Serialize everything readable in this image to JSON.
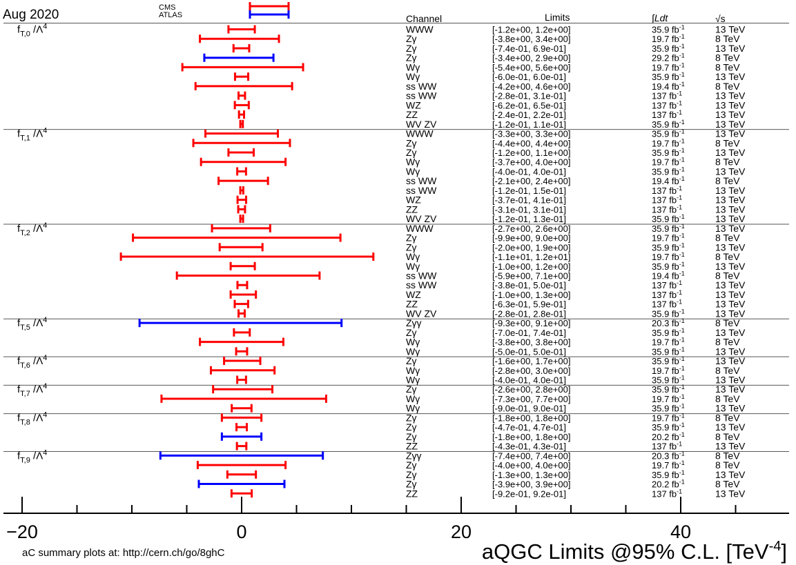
{
  "header": {
    "date": "Aug 2020",
    "legend": [
      {
        "label": "CMS",
        "color": "#ff0000"
      },
      {
        "label": "ATLAS",
        "color": "#0000ff"
      }
    ],
    "columns": {
      "channel": "Channel",
      "limits": "Limits",
      "lumi": "∫Ldt",
      "energy": "√s"
    }
  },
  "footer": {
    "link_text": "aC summary plots at: http://cern.ch/go/8ghC",
    "xlabel": "aQGC Limits @95% C.L. [TeV",
    "xlabel_sup": "-4",
    "xlabel_end": "]"
  },
  "chart_data": {
    "type": "errorbar",
    "xlim": [
      -20,
      50
    ],
    "xticks": [
      -20,
      0,
      20,
      40
    ],
    "xtick_labels": [
      "−20",
      "0",
      "20",
      "40"
    ],
    "colors": {
      "CMS": "#ff0000",
      "ATLAS": "#0000ff"
    },
    "groups": [
      {
        "label": "f",
        "sub": "T,0",
        "suffix": " /Λ",
        "sup": "4",
        "rows": [
          {
            "channel": "WWW",
            "limits": "[-1.2e+00, 1.2e+00]",
            "lumi": "35.9",
            "energy": "13 TeV",
            "exp": "CMS",
            "lo": -1.2,
            "hi": 1.2
          },
          {
            "channel": "Zγ",
            "limits": "[-3.8e+00, 3.4e+00]",
            "lumi": "19.7",
            "energy": "8 TeV",
            "exp": "CMS",
            "lo": -3.8,
            "hi": 3.4
          },
          {
            "channel": "Zγ",
            "limits": "[-7.4e-01, 6.9e-01]",
            "lumi": "35.9",
            "energy": "13 TeV",
            "exp": "CMS",
            "lo": -0.74,
            "hi": 0.69
          },
          {
            "channel": "Zγ",
            "limits": "[-3.4e+00, 2.9e+00]",
            "lumi": "29.2",
            "energy": "8 TeV",
            "exp": "ATLAS",
            "lo": -3.4,
            "hi": 2.9
          },
          {
            "channel": "Wγ",
            "limits": "[-5.4e+00, 5.6e+00]",
            "lumi": "19.7",
            "energy": "8 TeV",
            "exp": "CMS",
            "lo": -5.4,
            "hi": 5.6
          },
          {
            "channel": "Wγ",
            "limits": "[-6.0e-01, 6.0e-01]",
            "lumi": "35.9",
            "energy": "13 TeV",
            "exp": "CMS",
            "lo": -0.6,
            "hi": 0.6
          },
          {
            "channel": "ss WW",
            "limits": "[-4.2e+00, 4.6e+00]",
            "lumi": "19.4",
            "energy": "8 TeV",
            "exp": "CMS",
            "lo": -4.2,
            "hi": 4.6
          },
          {
            "channel": "ss WW",
            "limits": "[-2.8e-01, 3.1e-01]",
            "lumi": "137",
            "energy": "13 TeV",
            "exp": "CMS",
            "lo": -0.28,
            "hi": 0.31
          },
          {
            "channel": "WZ",
            "limits": "[-6.2e-01, 6.5e-01]",
            "lumi": "137",
            "energy": "13 TeV",
            "exp": "CMS",
            "lo": -0.62,
            "hi": 0.65
          },
          {
            "channel": "ZZ",
            "limits": "[-2.4e-01, 2.2e-01]",
            "lumi": "137",
            "energy": "13 TeV",
            "exp": "CMS",
            "lo": -0.24,
            "hi": 0.22
          },
          {
            "channel": "WV ZV",
            "limits": "[-1.2e-01, 1.1e-01]",
            "lumi": "35.9",
            "energy": "13 TeV",
            "exp": "CMS",
            "lo": -0.12,
            "hi": 0.11
          }
        ]
      },
      {
        "label": "f",
        "sub": "T,1",
        "suffix": " /Λ",
        "sup": "4",
        "rows": [
          {
            "channel": "WWW",
            "limits": "[-3.3e+00, 3.3e+00]",
            "lumi": "35.9",
            "energy": "13 TeV",
            "exp": "CMS",
            "lo": -3.3,
            "hi": 3.3
          },
          {
            "channel": "Zγ",
            "limits": "[-4.4e+00, 4.4e+00]",
            "lumi": "19.7",
            "energy": "8 TeV",
            "exp": "CMS",
            "lo": -4.4,
            "hi": 4.4
          },
          {
            "channel": "Zγ",
            "limits": "[-1.2e+00, 1.1e+00]",
            "lumi": "35.9",
            "energy": "13 TeV",
            "exp": "CMS",
            "lo": -1.2,
            "hi": 1.1
          },
          {
            "channel": "Wγ",
            "limits": "[-3.7e+00, 4.0e+00]",
            "lumi": "19.7",
            "energy": "8 TeV",
            "exp": "CMS",
            "lo": -3.7,
            "hi": 4.0
          },
          {
            "channel": "Wγ",
            "limits": "[-4.0e-01, 4.0e-01]",
            "lumi": "35.9",
            "energy": "13 TeV",
            "exp": "CMS",
            "lo": -0.4,
            "hi": 0.4
          },
          {
            "channel": "ss WW",
            "limits": "[-2.1e+00, 2.4e+00]",
            "lumi": "19.4",
            "energy": "8 TeV",
            "exp": "CMS",
            "lo": -2.1,
            "hi": 2.4
          },
          {
            "channel": "ss WW",
            "limits": "[-1.2e-01, 1.5e-01]",
            "lumi": "137",
            "energy": "13 TeV",
            "exp": "CMS",
            "lo": -0.12,
            "hi": 0.15
          },
          {
            "channel": "WZ",
            "limits": "[-3.7e-01, 4.1e-01]",
            "lumi": "137",
            "energy": "13 TeV",
            "exp": "CMS",
            "lo": -0.37,
            "hi": 0.41
          },
          {
            "channel": "ZZ",
            "limits": "[-3.1e-01, 3.1e-01]",
            "lumi": "137",
            "energy": "13 TeV",
            "exp": "CMS",
            "lo": -0.31,
            "hi": 0.31
          },
          {
            "channel": "WV ZV",
            "limits": "[-1.2e-01, 1.3e-01]",
            "lumi": "35.9",
            "energy": "13 TeV",
            "exp": "CMS",
            "lo": -0.12,
            "hi": 0.13
          }
        ]
      },
      {
        "label": "f",
        "sub": "T,2",
        "suffix": " /Λ",
        "sup": "4",
        "rows": [
          {
            "channel": "WWW",
            "limits": "[-2.7e+00, 2.6e+00]",
            "lumi": "35.9",
            "energy": "13 TeV",
            "exp": "CMS",
            "lo": -2.7,
            "hi": 2.6
          },
          {
            "channel": "Zγ",
            "limits": "[-9.9e+00, 9.0e+00]",
            "lumi": "19.7",
            "energy": "8 TeV",
            "exp": "CMS",
            "lo": -9.9,
            "hi": 9.0
          },
          {
            "channel": "Zγ",
            "limits": "[-2.0e+00, 1.9e+00]",
            "lumi": "35.9",
            "energy": "13 TeV",
            "exp": "CMS",
            "lo": -2.0,
            "hi": 1.9
          },
          {
            "channel": "Wγ",
            "limits": "[-1.1e+01, 1.2e+01]",
            "lumi": "19.7",
            "energy": "8 TeV",
            "exp": "CMS",
            "lo": -11,
            "hi": 12
          },
          {
            "channel": "Wγ",
            "limits": "[-1.0e+00, 1.2e+00]",
            "lumi": "35.9",
            "energy": "13 TeV",
            "exp": "CMS",
            "lo": -1.0,
            "hi": 1.2
          },
          {
            "channel": "ss WW",
            "limits": "[-5.9e+00, 7.1e+00]",
            "lumi": "19.4",
            "energy": "8 TeV",
            "exp": "CMS",
            "lo": -5.9,
            "hi": 7.1
          },
          {
            "channel": "ss WW",
            "limits": "[-3.8e-01, 5.0e-01]",
            "lumi": "137",
            "energy": "13 TeV",
            "exp": "CMS",
            "lo": -0.38,
            "hi": 0.5
          },
          {
            "channel": "WZ",
            "limits": "[-1.0e+00, 1.3e+00]",
            "lumi": "137",
            "energy": "13 TeV",
            "exp": "CMS",
            "lo": -1.0,
            "hi": 1.3
          },
          {
            "channel": "ZZ",
            "limits": "[-6.3e-01, 5.9e-01]",
            "lumi": "137",
            "energy": "13 TeV",
            "exp": "CMS",
            "lo": -0.63,
            "hi": 0.59
          },
          {
            "channel": "WV ZV",
            "limits": "[-2.8e-01, 2.8e-01]",
            "lumi": "35.9",
            "energy": "13 TeV",
            "exp": "CMS",
            "lo": -0.28,
            "hi": 0.28
          }
        ]
      },
      {
        "label": "f",
        "sub": "T,5",
        "suffix": " /Λ",
        "sup": "4",
        "rows": [
          {
            "channel": "Zγγ",
            "limits": "[-9.3e+00, 9.1e+00]",
            "lumi": "20.3",
            "energy": "8 TeV",
            "exp": "ATLAS",
            "lo": -9.3,
            "hi": 9.1
          },
          {
            "channel": "Zγ",
            "limits": "[-7.0e-01, 7.4e-01]",
            "lumi": "35.9",
            "energy": "13 TeV",
            "exp": "CMS",
            "lo": -0.7,
            "hi": 0.74
          },
          {
            "channel": "Wγ",
            "limits": "[-3.8e+00, 3.8e+00]",
            "lumi": "19.7",
            "energy": "8 TeV",
            "exp": "CMS",
            "lo": -3.8,
            "hi": 3.8
          },
          {
            "channel": "Wγ",
            "limits": "[-5.0e-01, 5.0e-01]",
            "lumi": "35.9",
            "energy": "13 TeV",
            "exp": "CMS",
            "lo": -0.5,
            "hi": 0.5
          }
        ]
      },
      {
        "label": "f",
        "sub": "T,6",
        "suffix": " /Λ",
        "sup": "4",
        "rows": [
          {
            "channel": "Zγ",
            "limits": "[-1.6e+00, 1.7e+00]",
            "lumi": "35.9",
            "energy": "13 TeV",
            "exp": "CMS",
            "lo": -1.6,
            "hi": 1.7
          },
          {
            "channel": "Wγ",
            "limits": "[-2.8e+00, 3.0e+00]",
            "lumi": "19.7",
            "energy": "8 TeV",
            "exp": "CMS",
            "lo": -2.8,
            "hi": 3.0
          },
          {
            "channel": "Wγ",
            "limits": "[-4.0e-01, 4.0e-01]",
            "lumi": "35.9",
            "energy": "13 TeV",
            "exp": "CMS",
            "lo": -0.4,
            "hi": 0.4
          }
        ]
      },
      {
        "label": "f",
        "sub": "T,7",
        "suffix": " /Λ",
        "sup": "4",
        "rows": [
          {
            "channel": "Zγ",
            "limits": "[-2.6e+00, 2.8e+00]",
            "lumi": "35.9",
            "energy": "13 TeV",
            "exp": "CMS",
            "lo": -2.6,
            "hi": 2.8
          },
          {
            "channel": "Wγ",
            "limits": "[-7.3e+00, 7.7e+00]",
            "lumi": "19.7",
            "energy": "8 TeV",
            "exp": "CMS",
            "lo": -7.3,
            "hi": 7.7
          },
          {
            "channel": "Wγ",
            "limits": "[-9.0e-01, 9.0e-01]",
            "lumi": "35.9",
            "energy": "13 TeV",
            "exp": "CMS",
            "lo": -0.9,
            "hi": 0.9
          }
        ]
      },
      {
        "label": "f",
        "sub": "T,8",
        "suffix": " /Λ",
        "sup": "4",
        "rows": [
          {
            "channel": "Zγ",
            "limits": "[-1.8e+00, 1.8e+00]",
            "lumi": "19.7",
            "energy": "8 TeV",
            "exp": "CMS",
            "lo": -1.8,
            "hi": 1.8
          },
          {
            "channel": "Zγ",
            "limits": "[-4.7e-01, 4.7e-01]",
            "lumi": "35.9",
            "energy": "13 TeV",
            "exp": "CMS",
            "lo": -0.47,
            "hi": 0.47
          },
          {
            "channel": "Zγ",
            "limits": "[-1.8e+00, 1.8e+00]",
            "lumi": "20.2",
            "energy": "8 TeV",
            "exp": "ATLAS",
            "lo": -1.8,
            "hi": 1.8
          },
          {
            "channel": "ZZ",
            "limits": "[-4.3e-01, 4.3e-01]",
            "lumi": "137",
            "energy": "13 TeV",
            "exp": "CMS",
            "lo": -0.43,
            "hi": 0.43
          }
        ]
      },
      {
        "label": "f",
        "sub": "T,9",
        "suffix": " /Λ",
        "sup": "4",
        "rows": [
          {
            "channel": "Zγγ",
            "limits": "[-7.4e+00, 7.4e+00]",
            "lumi": "20.3",
            "energy": "8 TeV",
            "exp": "ATLAS",
            "lo": -7.4,
            "hi": 7.4
          },
          {
            "channel": "Zγ",
            "limits": "[-4.0e+00, 4.0e+00]",
            "lumi": "19.7",
            "energy": "8 TeV",
            "exp": "CMS",
            "lo": -4.0,
            "hi": 4.0
          },
          {
            "channel": "Zγ",
            "limits": "[-1.3e+00, 1.3e+00]",
            "lumi": "35.9",
            "energy": "13 TeV",
            "exp": "CMS",
            "lo": -1.3,
            "hi": 1.3
          },
          {
            "channel": "Zγ",
            "limits": "[-3.9e+00, 3.9e+00]",
            "lumi": "20.2",
            "energy": "8 TeV",
            "exp": "ATLAS",
            "lo": -3.9,
            "hi": 3.9
          },
          {
            "channel": "ZZ",
            "limits": "[-9.2e-01, 9.2e-01]",
            "lumi": "137",
            "energy": "13 TeV",
            "exp": "CMS",
            "lo": -0.92,
            "hi": 0.92
          }
        ]
      }
    ]
  }
}
